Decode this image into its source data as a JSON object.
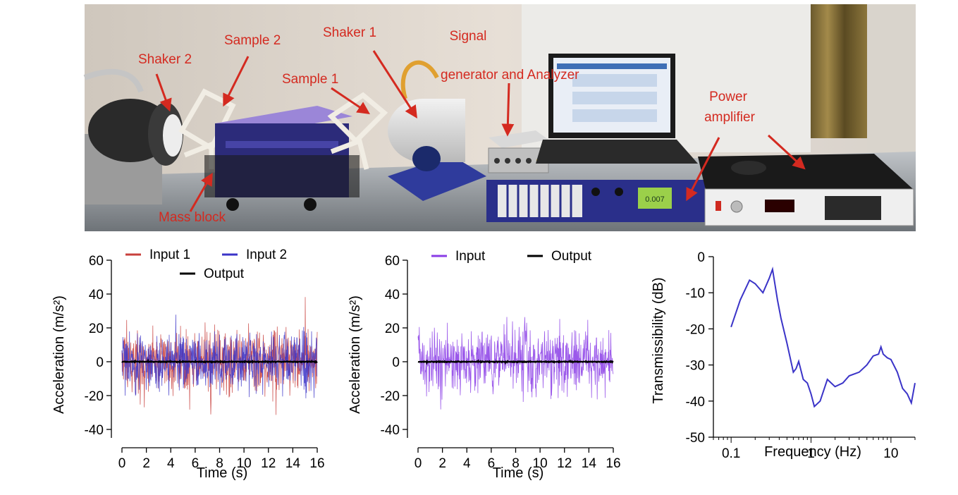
{
  "photo": {
    "labels": {
      "shaker2": "Shaker 2",
      "sample2": "Sample 2",
      "shaker1": "Shaker 1",
      "sample1": "Sample 1",
      "signal_line1": "Signal",
      "signal_line2": "generator and Analyzer",
      "power_line1": "Power",
      "power_line2": "amplifier",
      "mass_block": "Mass block"
    },
    "label_color": "#d42a20",
    "amp_display": "0.007"
  },
  "chart_data": [
    {
      "type": "line",
      "ylabel": "Acceleration (m/s²)",
      "xlabel": "Time (s)",
      "xlim": [
        0,
        16
      ],
      "ylim": [
        -45,
        60
      ],
      "xticks": [
        0,
        2,
        4,
        6,
        8,
        10,
        12,
        14,
        16
      ],
      "yticks": [
        -40,
        -20,
        0,
        20,
        40,
        60
      ],
      "series": [
        {
          "name": "Input 1",
          "color": "#c8403c",
          "amplitude": 45,
          "seed": 11
        },
        {
          "name": "Input 2",
          "color": "#3b34c8",
          "amplitude": 40,
          "seed": 23
        },
        {
          "name": "Output",
          "color": "#000000",
          "amplitude": 0.6,
          "seed": 5
        }
      ]
    },
    {
      "type": "line",
      "ylabel": "Acceleration (m/s²)",
      "xlabel": "Time (s)",
      "xlim": [
        0,
        16
      ],
      "ylim": [
        -45,
        60
      ],
      "xticks": [
        0,
        2,
        4,
        6,
        8,
        10,
        12,
        14,
        16
      ],
      "yticks": [
        -40,
        -20,
        0,
        20,
        40,
        60
      ],
      "series": [
        {
          "name": "Input",
          "color": "#8a3ce6",
          "amplitude": 45,
          "seed": 37
        },
        {
          "name": "Output",
          "color": "#000000",
          "amplitude": 0.6,
          "seed": 7
        }
      ]
    },
    {
      "type": "line",
      "ylabel": "Transmissibility (dB)",
      "xlabel": "Frequency (Hz)",
      "xscale": "log",
      "xlim": [
        0.06,
        20
      ],
      "ylim": [
        -50,
        0
      ],
      "xticks": [
        0.1,
        1,
        10
      ],
      "xtick_labels": [
        "0.1",
        "1",
        "10"
      ],
      "yticks": [
        0,
        -10,
        -20,
        -30,
        -40,
        -50
      ],
      "series": [
        {
          "name": "",
          "color": "#3b34c8",
          "x": [
            0.1,
            0.13,
            0.17,
            0.2,
            0.25,
            0.3,
            0.33,
            0.38,
            0.42,
            0.5,
            0.6,
            0.65,
            0.7,
            0.8,
            0.9,
            1.0,
            1.1,
            1.3,
            1.6,
            2.0,
            2.5,
            3.0,
            4.0,
            5.0,
            6.0,
            7.0,
            7.5,
            8.0,
            9.0,
            10.0,
            12.0,
            14.0,
            16.0,
            18.0,
            20.0
          ],
          "y": [
            -19.5,
            -12,
            -6.5,
            -7.5,
            -10,
            -6,
            -3.5,
            -12,
            -17,
            -24,
            -32,
            -31,
            -29,
            -34,
            -35,
            -38,
            -41.5,
            -40,
            -34,
            -36,
            -35,
            -33,
            -32,
            -30,
            -27.5,
            -27,
            -25,
            -27,
            -28,
            -28.5,
            -32,
            -36.5,
            -38,
            -40.5,
            -35
          ]
        }
      ]
    }
  ]
}
